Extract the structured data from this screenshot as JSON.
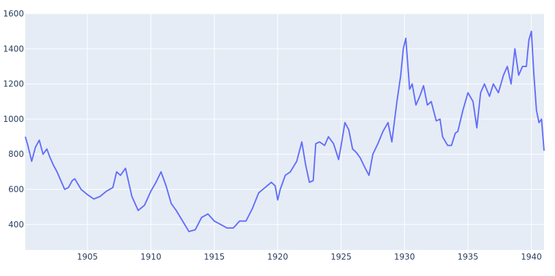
{
  "chart_data": {
    "type": "line",
    "title": "",
    "xlabel": "",
    "ylabel": "",
    "xlim": [
      1900.1,
      1941.0
    ],
    "ylim": [
      255,
      1600
    ],
    "x_ticks": [
      1905,
      1910,
      1915,
      1920,
      1925,
      1930,
      1935,
      1940
    ],
    "y_ticks": [
      400,
      600,
      800,
      1000,
      1200,
      1400,
      1600
    ],
    "grid": true,
    "legend": "none",
    "colors": {
      "plot_bg": "#e5ecf6",
      "grid": "#ffffff",
      "line": "#636efa",
      "tick_text": "#2a3f5f"
    },
    "series": [
      {
        "x": [
          1900.1,
          1900.3,
          1900.6,
          1900.9,
          1901.2,
          1901.5,
          1901.8,
          1902.0,
          1902.3,
          1902.6,
          1902.9,
          1903.2,
          1903.5,
          1903.8,
          1904.0,
          1904.5,
          1905.0,
          1905.5,
          1906.0,
          1906.5,
          1907.0,
          1907.3,
          1907.6,
          1908.0,
          1908.5,
          1909.0,
          1909.5,
          1910.0,
          1910.4,
          1910.8,
          1911.2,
          1911.6,
          1912.0,
          1912.5,
          1913.0,
          1913.5,
          1914.0,
          1914.5,
          1915.0,
          1915.5,
          1916.0,
          1916.5,
          1917.0,
          1917.5,
          1918.0,
          1918.5,
          1919.0,
          1919.5,
          1919.8,
          1920.0,
          1920.2,
          1920.6,
          1921.0,
          1921.5,
          1921.9,
          1922.2,
          1922.5,
          1922.8,
          1923.0,
          1923.3,
          1923.7,
          1924.0,
          1924.4,
          1924.8,
          1925.0,
          1925.3,
          1925.6,
          1925.9,
          1926.2,
          1926.5,
          1926.9,
          1927.2,
          1927.5,
          1927.9,
          1928.3,
          1928.7,
          1929.0,
          1929.4,
          1929.7,
          1929.9,
          1930.1,
          1930.4,
          1930.6,
          1930.9,
          1931.2,
          1931.5,
          1931.8,
          1932.1,
          1932.5,
          1932.8,
          1933.0,
          1933.4,
          1933.7,
          1934.0,
          1934.2,
          1934.6,
          1935.0,
          1935.4,
          1935.7,
          1936.0,
          1936.3,
          1936.7,
          1937.0,
          1937.4,
          1937.8,
          1938.1,
          1938.4,
          1938.7,
          1939.0,
          1939.3,
          1939.6,
          1939.8,
          1940.0,
          1940.2,
          1940.4,
          1940.6,
          1940.8,
          1941.0
        ],
        "y": [
          900,
          850,
          760,
          840,
          880,
          800,
          830,
          790,
          740,
          700,
          650,
          600,
          610,
          650,
          660,
          600,
          570,
          545,
          560,
          590,
          610,
          700,
          680,
          720,
          560,
          480,
          510,
          590,
          640,
          700,
          620,
          520,
          480,
          420,
          360,
          370,
          440,
          460,
          420,
          400,
          380,
          380,
          420,
          420,
          490,
          580,
          610,
          640,
          620,
          540,
          600,
          680,
          700,
          760,
          870,
          740,
          640,
          650,
          860,
          870,
          850,
          900,
          860,
          770,
          850,
          980,
          940,
          830,
          810,
          780,
          720,
          680,
          800,
          860,
          930,
          980,
          870,
          1100,
          1250,
          1400,
          1460,
          1170,
          1200,
          1080,
          1130,
          1190,
          1080,
          1100,
          990,
          1000,
          900,
          850,
          850,
          920,
          930,
          1050,
          1150,
          1100,
          950,
          1150,
          1200,
          1130,
          1200,
          1150,
          1250,
          1300,
          1200,
          1400,
          1250,
          1300,
          1300,
          1450,
          1500,
          1250,
          1050,
          980,
          1000,
          820
        ]
      }
    ]
  }
}
